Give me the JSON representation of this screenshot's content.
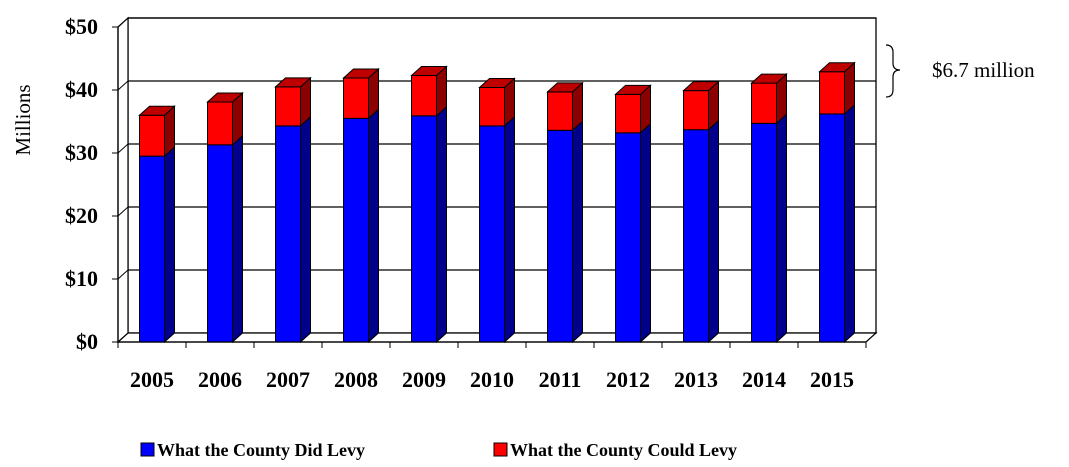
{
  "chart_data": {
    "type": "bar",
    "stacked": true,
    "style": "3d",
    "categories": [
      "2005",
      "2006",
      "2007",
      "2008",
      "2009",
      "2010",
      "2011",
      "2012",
      "2013",
      "2014",
      "2015"
    ],
    "series": [
      {
        "name": "What the County Did Levy",
        "color": "#0000ff",
        "values": [
          29.5,
          31.3,
          34.3,
          35.5,
          35.9,
          34.3,
          33.6,
          33.2,
          33.7,
          34.7,
          36.2
        ]
      },
      {
        "name": "What the County Could Levy",
        "color": "#ff0000",
        "values": [
          6.5,
          6.8,
          6.2,
          6.4,
          6.4,
          6.1,
          6.1,
          6.1,
          6.2,
          6.4,
          6.7
        ]
      }
    ],
    "ylabel": "Millions",
    "ylim": [
      0,
      50
    ],
    "yticks": [
      "$0",
      "$10",
      "$20",
      "$30",
      "$40",
      "$50"
    ],
    "ytick_values": [
      0,
      10,
      20,
      30,
      40,
      50
    ],
    "grid": true,
    "legend_position": "bottom",
    "annotation": {
      "text": "$6.7 million",
      "target": "2015"
    }
  }
}
